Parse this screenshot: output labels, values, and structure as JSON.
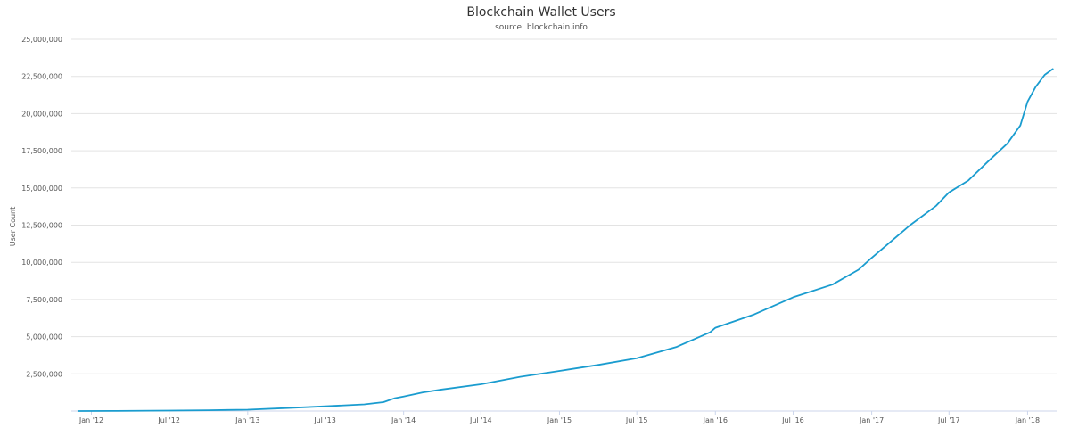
{
  "chart_data": {
    "type": "line",
    "title": "Blockchain Wallet Users",
    "subtitle": "source: blockchain.info",
    "xlabel": "",
    "ylabel": "User Count",
    "ylim": [
      0,
      25000000
    ],
    "xlim": [
      "2011-11-15",
      "2018-03-10"
    ],
    "grid": true,
    "legend": "none",
    "yticks": [
      {
        "value": 2500000,
        "label": "2,500,000"
      },
      {
        "value": 5000000,
        "label": "5,000,000"
      },
      {
        "value": 7500000,
        "label": "7,500,000"
      },
      {
        "value": 10000000,
        "label": "10,000,000"
      },
      {
        "value": 12500000,
        "label": "12,500,000"
      },
      {
        "value": 15000000,
        "label": "15,000,000"
      },
      {
        "value": 17500000,
        "label": "17,500,000"
      },
      {
        "value": 20000000,
        "label": "20,000,000"
      },
      {
        "value": 22500000,
        "label": "22,500,000"
      },
      {
        "value": 25000000,
        "label": "25,000,000"
      }
    ],
    "xticks": [
      {
        "date": "2012-01-01",
        "label": "Jan '12"
      },
      {
        "date": "2012-07-01",
        "label": "Jul '12"
      },
      {
        "date": "2013-01-01",
        "label": "Jan '13"
      },
      {
        "date": "2013-07-01",
        "label": "Jul '13"
      },
      {
        "date": "2014-01-01",
        "label": "Jan '14"
      },
      {
        "date": "2014-07-01",
        "label": "Jul '14"
      },
      {
        "date": "2015-01-01",
        "label": "Jan '15"
      },
      {
        "date": "2015-07-01",
        "label": "Jul '15"
      },
      {
        "date": "2016-01-01",
        "label": "Jan '16"
      },
      {
        "date": "2016-07-01",
        "label": "Jul '16"
      },
      {
        "date": "2017-01-01",
        "label": "Jan '17"
      },
      {
        "date": "2017-07-01",
        "label": "Jul '17"
      },
      {
        "date": "2018-01-01",
        "label": "Jan '18"
      }
    ],
    "series": [
      {
        "color": "#1a9ccf",
        "points": [
          [
            "2011-12-01",
            0
          ],
          [
            "2012-03-01",
            5000
          ],
          [
            "2012-07-01",
            30000
          ],
          [
            "2012-10-01",
            55000
          ],
          [
            "2013-01-01",
            90000
          ],
          [
            "2013-04-01",
            200000
          ],
          [
            "2013-07-01",
            320000
          ],
          [
            "2013-10-01",
            450000
          ],
          [
            "2013-11-15",
            600000
          ],
          [
            "2013-12-10",
            850000
          ],
          [
            "2014-01-01",
            980000
          ],
          [
            "2014-02-15",
            1250000
          ],
          [
            "2014-04-01",
            1450000
          ],
          [
            "2014-07-01",
            1800000
          ],
          [
            "2014-10-01",
            2300000
          ],
          [
            "2015-01-01",
            2700000
          ],
          [
            "2015-04-01",
            3100000
          ],
          [
            "2015-07-01",
            3550000
          ],
          [
            "2015-10-01",
            4300000
          ],
          [
            "2015-12-20",
            5300000
          ],
          [
            "2016-01-01",
            5600000
          ],
          [
            "2016-04-01",
            6500000
          ],
          [
            "2016-07-01",
            7650000
          ],
          [
            "2016-10-01",
            8500000
          ],
          [
            "2016-12-01",
            9500000
          ],
          [
            "2017-01-01",
            10300000
          ],
          [
            "2017-04-01",
            12500000
          ],
          [
            "2017-06-01",
            13800000
          ],
          [
            "2017-07-01",
            14700000
          ],
          [
            "2017-08-15",
            15500000
          ],
          [
            "2017-10-01",
            16800000
          ],
          [
            "2017-11-15",
            18000000
          ],
          [
            "2017-12-15",
            19200000
          ],
          [
            "2018-01-01",
            20800000
          ],
          [
            "2018-01-20",
            21800000
          ],
          [
            "2018-02-10",
            22600000
          ],
          [
            "2018-03-01",
            23000000
          ]
        ]
      }
    ]
  }
}
